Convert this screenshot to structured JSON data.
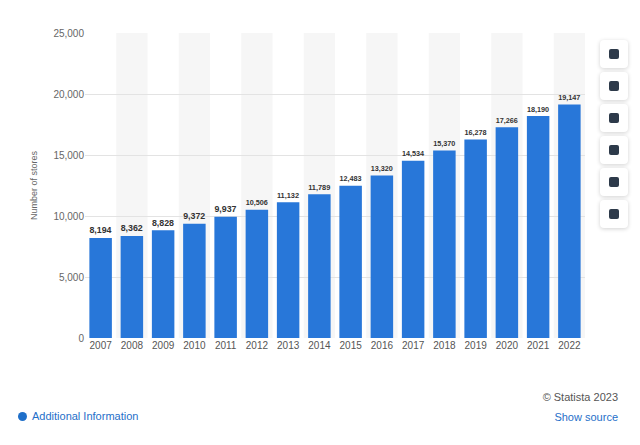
{
  "chart_data": {
    "type": "bar",
    "y_label": "Number of stores",
    "categories": [
      "2007",
      "2008",
      "2009",
      "2010",
      "2011",
      "2012",
      "2013",
      "2014",
      "2015",
      "2016",
      "2017",
      "2018",
      "2019",
      "2020",
      "2021",
      "2022"
    ],
    "values": [
      8194,
      8362,
      8828,
      9372,
      9937,
      10506,
      11132,
      11789,
      12483,
      13320,
      14534,
      15370,
      16278,
      17266,
      18190,
      19147
    ],
    "value_labels": [
      "8,194",
      "8,362",
      "8,828",
      "9,372",
      "9,937",
      "10,506",
      "11,132",
      "11,789",
      "12,483",
      "13,320",
      "14,534",
      "15,370",
      "16,278",
      "17,266",
      "18,190",
      "19,147"
    ],
    "color": "#2877d9",
    "ylim": [
      0,
      25000
    ],
    "yticks": [
      0,
      {
        "value": 5000,
        "label": "5,000"
      },
      {
        "value": 10000,
        "label": "10,000"
      },
      {
        "value": 15000,
        "label": "15,000"
      },
      {
        "value": 20000,
        "label": "20,000"
      },
      {
        "value": 25000,
        "label": "25,000"
      }
    ],
    "grid": true,
    "data_labels": true,
    "annotations": [
      "© Statista 2023",
      "Additional Information",
      "Show source"
    ]
  }
}
